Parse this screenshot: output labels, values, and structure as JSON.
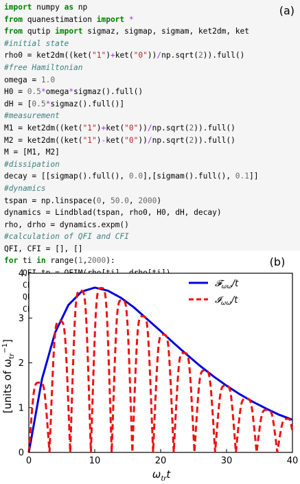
{
  "panel_a": {
    "label": "(a)",
    "code_lines": [
      [
        {
          "t": "import",
          "c": "kw"
        },
        {
          "t": " numpy "
        },
        {
          "t": "as",
          "c": "kw"
        },
        {
          "t": " np"
        }
      ],
      [
        {
          "t": "from",
          "c": "kw"
        },
        {
          "t": " quanestimation "
        },
        {
          "t": "import",
          "c": "kw"
        },
        {
          "t": " "
        },
        {
          "t": "*",
          "c": "op"
        }
      ],
      [
        {
          "t": "from",
          "c": "kw"
        },
        {
          "t": " qutip "
        },
        {
          "t": "import",
          "c": "kw"
        },
        {
          "t": " sigmaz, sigmap, sigmam, ket2dm, ket"
        }
      ],
      [
        {
          "t": "#initial state",
          "c": "cm"
        }
      ],
      [
        {
          "t": "rho0 = ket2dm((ket("
        },
        {
          "t": "\"1\"",
          "c": "st"
        },
        {
          "t": ")"
        },
        {
          "t": "+",
          "c": "op"
        },
        {
          "t": "ket("
        },
        {
          "t": "\"0\"",
          "c": "st"
        },
        {
          "t": "))"
        },
        {
          "t": "/",
          "c": "op"
        },
        {
          "t": "np.sqrt("
        },
        {
          "t": "2",
          "c": "nm"
        },
        {
          "t": ")).full()"
        }
      ],
      [
        {
          "t": "#free Hamiltonian",
          "c": "cm"
        }
      ],
      [
        {
          "t": "omega = "
        },
        {
          "t": "1.0",
          "c": "nm"
        }
      ],
      [
        {
          "t": "H0 = "
        },
        {
          "t": "0.5",
          "c": "nm"
        },
        {
          "t": "*",
          "c": "op"
        },
        {
          "t": "omega"
        },
        {
          "t": "*",
          "c": "op"
        },
        {
          "t": "sigmaz().full()"
        }
      ],
      [
        {
          "t": "dH = ["
        },
        {
          "t": "0.5",
          "c": "nm"
        },
        {
          "t": "*",
          "c": "op"
        },
        {
          "t": "sigmaz().full()]"
        }
      ],
      [
        {
          "t": "#measurement",
          "c": "cm"
        }
      ],
      [
        {
          "t": "M1 = ket2dm((ket("
        },
        {
          "t": "\"1\"",
          "c": "st"
        },
        {
          "t": ")"
        },
        {
          "t": "+",
          "c": "op"
        },
        {
          "t": "ket("
        },
        {
          "t": "\"0\"",
          "c": "st"
        },
        {
          "t": "))"
        },
        {
          "t": "/",
          "c": "op"
        },
        {
          "t": "np.sqrt("
        },
        {
          "t": "2",
          "c": "nm"
        },
        {
          "t": ")).full()"
        }
      ],
      [
        {
          "t": "M2 = ket2dm((ket("
        },
        {
          "t": "\"1\"",
          "c": "st"
        },
        {
          "t": ")"
        },
        {
          "t": "-",
          "c": "op"
        },
        {
          "t": "ket("
        },
        {
          "t": "\"0\"",
          "c": "st"
        },
        {
          "t": "))"
        },
        {
          "t": "/",
          "c": "op"
        },
        {
          "t": "np.sqrt("
        },
        {
          "t": "2",
          "c": "nm"
        },
        {
          "t": ")).full()"
        }
      ],
      [
        {
          "t": "M = [M1, M2]"
        }
      ],
      [
        {
          "t": "#dissipation",
          "c": "cm"
        }
      ],
      [
        {
          "t": "decay = [[sigmap().full(), "
        },
        {
          "t": "0.0",
          "c": "nm"
        },
        {
          "t": "],[sigmam().full(), "
        },
        {
          "t": "0.1",
          "c": "nm"
        },
        {
          "t": "]]"
        }
      ],
      [
        {
          "t": "#dynamics",
          "c": "cm"
        }
      ],
      [
        {
          "t": "tspan = np.linspace("
        },
        {
          "t": "0",
          "c": "nm"
        },
        {
          "t": ", "
        },
        {
          "t": "50.0",
          "c": "nm"
        },
        {
          "t": ", "
        },
        {
          "t": "2000",
          "c": "nm"
        },
        {
          "t": ")"
        }
      ],
      [
        {
          "t": "dynamics = Lindblad(tspan, rho0, H0, dH, decay)"
        }
      ],
      [
        {
          "t": "rho, drho = dynamics.expm()"
        }
      ],
      [
        {
          "t": "#calculation of QFI and CFI",
          "c": "cm"
        }
      ],
      [
        {
          "t": "QFI, CFI = [], []"
        }
      ],
      [
        {
          "t": "for",
          "c": "kw"
        },
        {
          "t": " ti "
        },
        {
          "t": "in",
          "c": "kw"
        },
        {
          "t": " range("
        },
        {
          "t": "1",
          "c": "nm"
        },
        {
          "t": ","
        },
        {
          "t": "2000",
          "c": "nm"
        },
        {
          "t": "):"
        }
      ],
      [
        {
          "t": "    QFI_tp = QFIM(rho[ti], drho[ti])"
        }
      ],
      [
        {
          "t": "    CFI_tp = CFIM(rho[ti], drho[ti], M)"
        }
      ],
      [
        {
          "t": "    QFI.append(QFI_tp)"
        }
      ],
      [
        {
          "t": "    CFI.append(CFI_tp)"
        }
      ]
    ],
    "colors": {
      "keyword": "#008000",
      "comment": "#408080",
      "number": "#666666",
      "operator": "#aa22ff",
      "string": "#ba2121"
    }
  },
  "panel_b": {
    "label": "(b)",
    "chart_data": {
      "type": "line",
      "xlabel": "ω_tr t",
      "ylabel": "[units of ω_tr^-1]",
      "xlim": [
        0,
        40
      ],
      "ylim": [
        0,
        4
      ],
      "xticks": [
        "0",
        "10",
        "20",
        "30",
        "40"
      ],
      "yticks": [
        "0",
        "1",
        "2",
        "3",
        "4"
      ],
      "legend_position": "top-right",
      "series": [
        {
          "name": "F_ωω/t",
          "style": "solid",
          "color": "#0000dd",
          "x": [
            0,
            2,
            4,
            6,
            8,
            10,
            12,
            14,
            16,
            18,
            20,
            22,
            24,
            26,
            28,
            30,
            32,
            34,
            36,
            38,
            40
          ],
          "y": [
            0,
            1.64,
            2.68,
            3.29,
            3.59,
            3.68,
            3.61,
            3.45,
            3.23,
            2.97,
            2.71,
            2.44,
            2.18,
            1.93,
            1.7,
            1.49,
            1.3,
            1.13,
            0.98,
            0.84,
            0.73
          ]
        },
        {
          "name": "I_ωω/t",
          "style": "dashed",
          "color": "#ee1111",
          "x": [
            0,
            1.57,
            3.14,
            4.71,
            6.28,
            7.85,
            9.42,
            11.0,
            12.57,
            14.14,
            15.71,
            17.28,
            18.85,
            20.42,
            21.99,
            23.56,
            25.13,
            26.7,
            28.27,
            29.85,
            31.42,
            32.99,
            34.56,
            36.13,
            37.7,
            39.27,
            40
          ],
          "y": [
            0,
            1.56,
            0,
            2.93,
            0,
            3.61,
            0,
            3.67,
            0,
            3.4,
            0,
            3.04,
            0,
            2.63,
            0,
            2.22,
            0,
            1.83,
            0,
            1.49,
            0,
            1.2,
            0,
            0.95,
            0,
            0.75,
            0.47
          ]
        }
      ]
    }
  }
}
